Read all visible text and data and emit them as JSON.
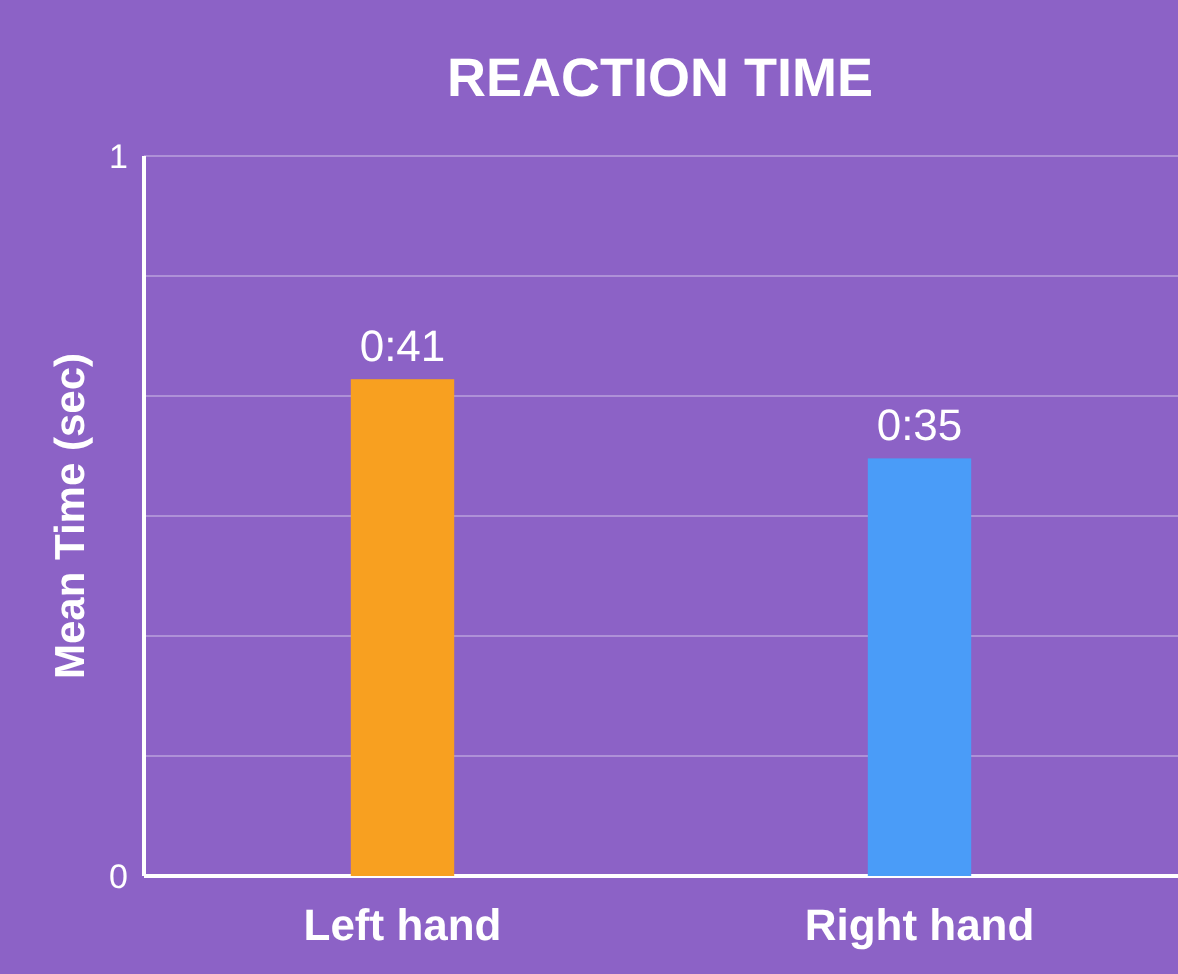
{
  "chart_data": {
    "type": "bar",
    "title": "REACTION TIME",
    "ylabel": "Mean Time (sec)",
    "categories": [
      "Left hand",
      "Right hand"
    ],
    "values": [
      0.69,
      0.58
    ],
    "value_labels": [
      "0:41",
      "0:35"
    ],
    "colors": [
      "#f8a020",
      "#4a9cf8"
    ],
    "ylim": [
      0,
      1
    ],
    "yticks": [
      0,
      {
        "value": 0.1667,
        "label": null
      },
      {
        "value": 0.3333,
        "label": null
      },
      {
        "value": 0.5,
        "label": null
      },
      {
        "value": 0.6667,
        "label": null
      },
      {
        "value": 0.8333,
        "label": null
      },
      1
    ],
    "grid": "y"
  }
}
